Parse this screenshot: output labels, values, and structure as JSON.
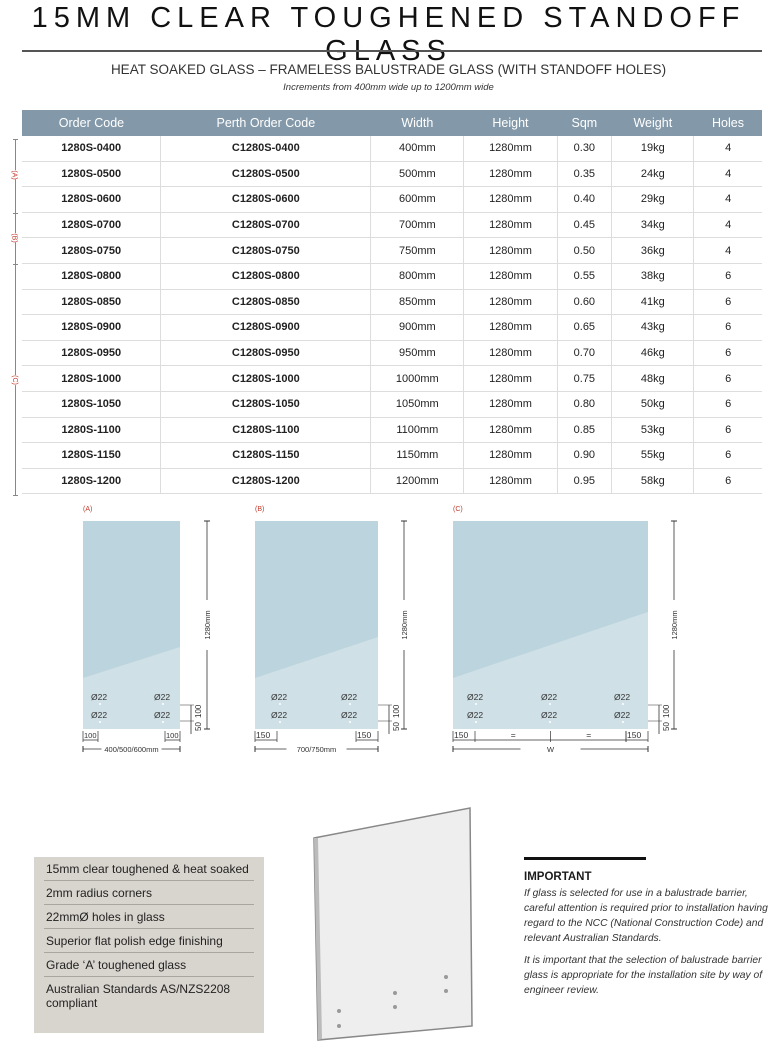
{
  "header": {
    "title": "15MM CLEAR TOUGHENED STANDOFF GLASS",
    "subtitle": "HEAT SOAKED GLASS – FRAMELESS BALUSTRADE GLASS (WITH STANDOFF HOLES)",
    "note": "Increments from 400mm wide up to 1200mm wide"
  },
  "table": {
    "columns": [
      "Order Code",
      "Perth Order Code",
      "Width",
      "Height",
      "Sqm",
      "Weight",
      "Holes"
    ],
    "rows": [
      [
        "1280S-0400",
        "C1280S-0400",
        "400mm",
        "1280mm",
        "0.30",
        "19kg",
        "4"
      ],
      [
        "1280S-0500",
        "C1280S-0500",
        "500mm",
        "1280mm",
        "0.35",
        "24kg",
        "4"
      ],
      [
        "1280S-0600",
        "C1280S-0600",
        "600mm",
        "1280mm",
        "0.40",
        "29kg",
        "4"
      ],
      [
        "1280S-0700",
        "C1280S-0700",
        "700mm",
        "1280mm",
        "0.45",
        "34kg",
        "4"
      ],
      [
        "1280S-0750",
        "C1280S-0750",
        "750mm",
        "1280mm",
        "0.50",
        "36kg",
        "4"
      ],
      [
        "1280S-0800",
        "C1280S-0800",
        "800mm",
        "1280mm",
        "0.55",
        "38kg",
        "6"
      ],
      [
        "1280S-0850",
        "C1280S-0850",
        "850mm",
        "1280mm",
        "0.60",
        "41kg",
        "6"
      ],
      [
        "1280S-0900",
        "C1280S-0900",
        "900mm",
        "1280mm",
        "0.65",
        "43kg",
        "6"
      ],
      [
        "1280S-0950",
        "C1280S-0950",
        "950mm",
        "1280mm",
        "0.70",
        "46kg",
        "6"
      ],
      [
        "1280S-1000",
        "C1280S-1000",
        "1000mm",
        "1280mm",
        "0.75",
        "48kg",
        "6"
      ],
      [
        "1280S-1050",
        "C1280S-1050",
        "1050mm",
        "1280mm",
        "0.80",
        "50kg",
        "6"
      ],
      [
        "1280S-1100",
        "C1280S-1100",
        "1100mm",
        "1280mm",
        "0.85",
        "53kg",
        "6"
      ],
      [
        "1280S-1150",
        "C1280S-1150",
        "1150mm",
        "1280mm",
        "0.90",
        "55kg",
        "6"
      ],
      [
        "1280S-1200",
        "C1280S-1200",
        "1200mm",
        "1280mm",
        "0.95",
        "58kg",
        "6"
      ]
    ],
    "group_labels": [
      "(A)",
      "(B)",
      "(C)"
    ]
  },
  "diagrams": [
    {
      "label": "(A)",
      "height": "1280mm",
      "hole": "Ø22",
      "edge": "100",
      "width": "400/500/600mm",
      "v1": "50",
      "v2": "100"
    },
    {
      "label": "(B)",
      "height": "1280mm",
      "hole": "Ø22",
      "edge": "150",
      "width": "700/750mm",
      "v1": "50",
      "v2": "100"
    },
    {
      "label": "(C)",
      "height": "1280mm",
      "hole": "Ø22",
      "edge": "150",
      "mid": "=",
      "width": "W",
      "v1": "50",
      "v2": "100"
    }
  ],
  "features": [
    "15mm clear toughened & heat soaked",
    "2mm radius corners",
    "22mmØ holes in glass",
    "Superior flat polish edge finishing",
    "Grade ‘A’ toughened glass",
    "Australian Standards AS/NZS2208 compliant"
  ],
  "important": {
    "title": "IMPORTANT",
    "p1": "If glass is selected for use in a balustrade barrier, careful attention is required prior to installation having regard to the NCC (National Construction Code) and relevant Australian Standards.",
    "p2": "It is important that the selection of balustrade barrier glass is appropriate for the installation site by way of engineer review."
  },
  "colors": {
    "header": "#8399a9",
    "glass_dark": "#bcd4de",
    "glass_light": "#cfe0e6",
    "label_red": "#c0392b",
    "features_bg": "#d8d4ce"
  }
}
